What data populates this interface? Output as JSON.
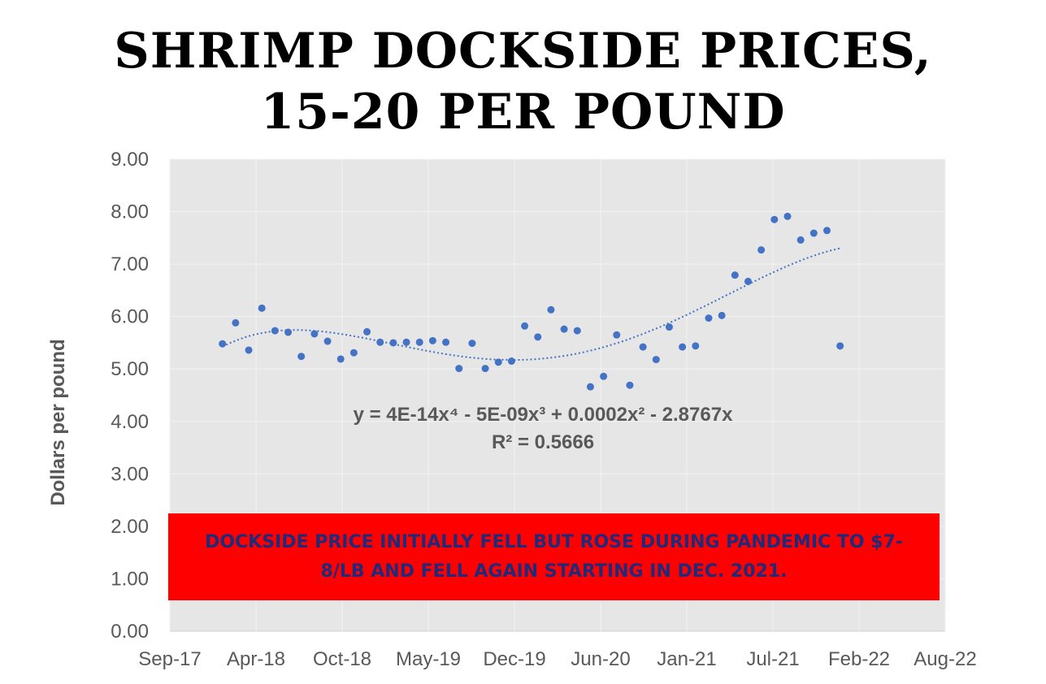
{
  "title_line1": "SHRIMP DOCKSIDE PRICES,",
  "title_line2": "15-20 PER POUND",
  "callout_text": "DOCKSIDE PRICE INITIALLY FELL BUT ROSE DURING PANDEMIC TO $7-8/LB AND FELL AGAIN STARTING IN DEC. 2021.",
  "trendline": {
    "equation": "y = 4E-14x⁴ - 5E-09x³ + 0.0002x² - 2.8767x",
    "r_squared": "R² = 0.5666"
  },
  "colors": {
    "plot_bg": "#e6e6e6",
    "gridline": "#f2f2f2",
    "points": "#4472c4",
    "trend": "#4472c4",
    "callout_bg": "#ff0000",
    "callout_text": "#1f2a7a",
    "axis_text": "#595959"
  },
  "chart_data": {
    "type": "scatter",
    "title": "SHRIMP DOCKSIDE PRICES, 15-20 PER POUND",
    "xlabel": "",
    "ylabel": "Dollars per pound",
    "x_ticks": [
      "Sep-17",
      "Apr-18",
      "Oct-18",
      "May-19",
      "Dec-19",
      "Jun-20",
      "Jan-21",
      "Jul-21",
      "Feb-22",
      "Aug-22"
    ],
    "y_ticks": [
      "0.00",
      "1.00",
      "2.00",
      "3.00",
      "4.00",
      "5.00",
      "6.00",
      "7.00",
      "8.00",
      "9.00"
    ],
    "ylim": [
      0,
      9
    ],
    "grid": true,
    "trendline_type": "polynomial (order 4)",
    "series": [
      {
        "points": [
          {
            "x": "2018-01",
            "y": 5.48
          },
          {
            "x": "2018-02",
            "y": 5.88
          },
          {
            "x": "2018-03",
            "y": 5.36
          },
          {
            "x": "2018-04",
            "y": 6.16
          },
          {
            "x": "2018-05",
            "y": 5.73
          },
          {
            "x": "2018-06",
            "y": 5.7
          },
          {
            "x": "2018-07",
            "y": 5.24
          },
          {
            "x": "2018-08",
            "y": 5.67
          },
          {
            "x": "2018-09",
            "y": 5.53
          },
          {
            "x": "2018-10",
            "y": 5.19
          },
          {
            "x": "2018-11",
            "y": 5.31
          },
          {
            "x": "2018-12",
            "y": 5.71
          },
          {
            "x": "2019-01",
            "y": 5.51
          },
          {
            "x": "2019-02",
            "y": 5.5
          },
          {
            "x": "2019-03",
            "y": 5.51
          },
          {
            "x": "2019-04",
            "y": 5.51
          },
          {
            "x": "2019-05",
            "y": 5.54
          },
          {
            "x": "2019-06",
            "y": 5.51
          },
          {
            "x": "2019-07",
            "y": 5.01
          },
          {
            "x": "2019-08",
            "y": 5.49
          },
          {
            "x": "2019-09",
            "y": 5.01
          },
          {
            "x": "2019-10",
            "y": 5.13
          },
          {
            "x": "2019-11",
            "y": 5.15
          },
          {
            "x": "2019-12",
            "y": 5.82
          },
          {
            "x": "2020-01",
            "y": 5.61
          },
          {
            "x": "2020-02",
            "y": 6.13
          },
          {
            "x": "2020-03",
            "y": 5.76
          },
          {
            "x": "2020-04",
            "y": 5.73
          },
          {
            "x": "2020-05",
            "y": 4.66
          },
          {
            "x": "2020-06",
            "y": 4.86
          },
          {
            "x": "2020-07",
            "y": 5.65
          },
          {
            "x": "2020-08",
            "y": 4.69
          },
          {
            "x": "2020-09",
            "y": 5.42
          },
          {
            "x": "2020-10",
            "y": 5.18
          },
          {
            "x": "2020-11",
            "y": 5.8
          },
          {
            "x": "2020-12",
            "y": 5.42
          },
          {
            "x": "2021-01",
            "y": 5.44
          },
          {
            "x": "2021-02",
            "y": 5.97
          },
          {
            "x": "2021-03",
            "y": 6.02
          },
          {
            "x": "2021-04",
            "y": 6.79
          },
          {
            "x": "2021-05",
            "y": 6.67
          },
          {
            "x": "2021-06",
            "y": 7.27
          },
          {
            "x": "2021-07",
            "y": 7.85
          },
          {
            "x": "2021-08",
            "y": 7.91
          },
          {
            "x": "2021-09",
            "y": 7.46
          },
          {
            "x": "2021-10",
            "y": 7.59
          },
          {
            "x": "2021-11",
            "y": 7.64
          },
          {
            "x": "2021-12",
            "y": 5.44
          }
        ]
      }
    ]
  }
}
